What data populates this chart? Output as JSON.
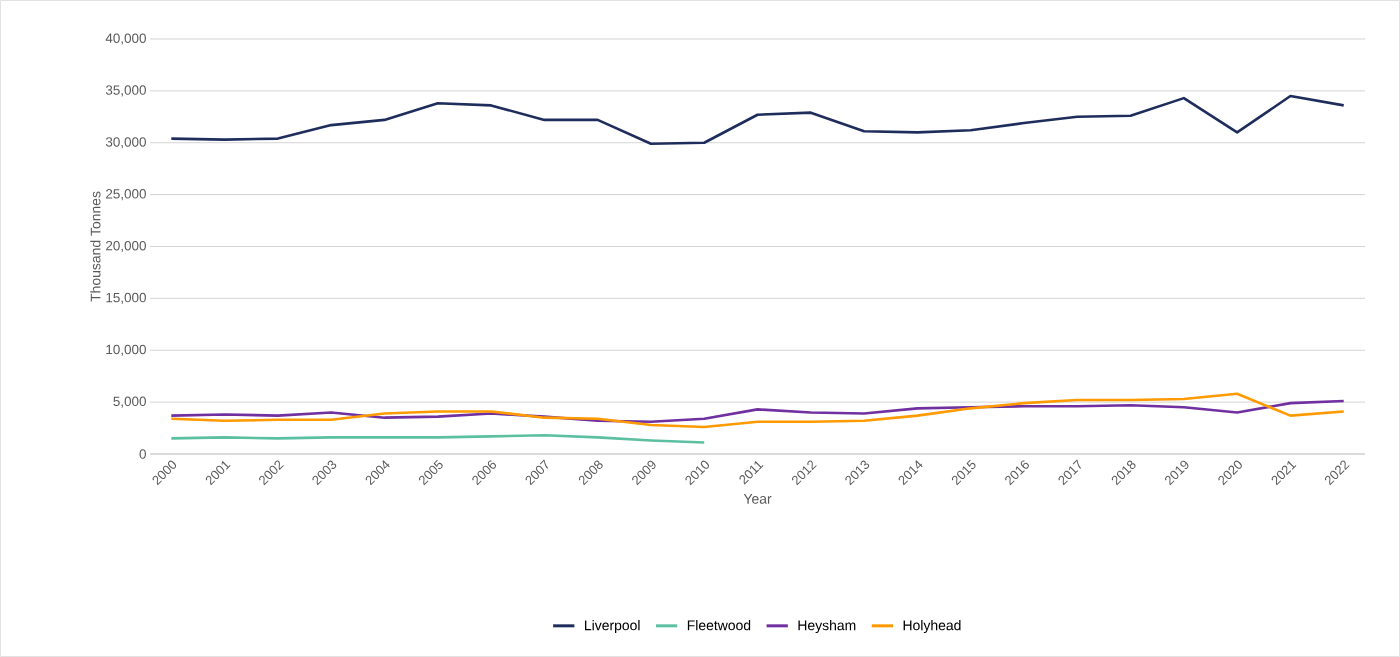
{
  "chart_data": {
    "type": "line",
    "xlabel": "Year",
    "ylabel": "Thousand Tonnes",
    "categories": [
      "2000",
      "2001",
      "2002",
      "2003",
      "2004",
      "2005",
      "2006",
      "2007",
      "2008",
      "2009",
      "2010",
      "2011",
      "2012",
      "2013",
      "2014",
      "2015",
      "2016",
      "2017",
      "2018",
      "2019",
      "2020",
      "2021",
      "2022"
    ],
    "series": [
      {
        "name": "Liverpool",
        "color": "#1f2d5c",
        "values": [
          30400,
          30300,
          30400,
          31700,
          32200,
          33800,
          33600,
          32200,
          32200,
          29900,
          30000,
          32700,
          32900,
          31100,
          31000,
          31200,
          31900,
          32500,
          32600,
          34300,
          31000,
          34500,
          33600
        ]
      },
      {
        "name": "Fleetwood",
        "color": "#5bbfa0",
        "values": [
          1500,
          1600,
          1500,
          1600,
          1600,
          1600,
          1700,
          1800,
          1600,
          1300,
          1100,
          null,
          null,
          null,
          null,
          null,
          null,
          null,
          null,
          null,
          null,
          null,
          null
        ]
      },
      {
        "name": "Heysham",
        "color": "#7030a0",
        "values": [
          3700,
          3800,
          3700,
          4000,
          3500,
          3600,
          3900,
          3600,
          3200,
          3100,
          3400,
          4300,
          4000,
          3900,
          4400,
          4500,
          4600,
          4600,
          4700,
          4500,
          4000,
          4900,
          5100
        ]
      },
      {
        "name": "Holyhead",
        "color": "#ff9a00",
        "values": [
          3400,
          3200,
          3300,
          3300,
          3900,
          4100,
          4100,
          3500,
          3400,
          2800,
          2600,
          3100,
          3100,
          3200,
          3700,
          4400,
          4900,
          5200,
          5200,
          5300,
          5800,
          3700,
          4100
        ]
      }
    ],
    "ylim": [
      0,
      40000
    ],
    "yticks": [
      {
        "value": 0,
        "label": "0"
      },
      {
        "value": 5000,
        "label": "5,000"
      },
      {
        "value": 10000,
        "label": "10,000"
      },
      {
        "value": 15000,
        "label": "15,000"
      },
      {
        "value": 20000,
        "label": "20,000"
      },
      {
        "value": 25000,
        "label": "25,000"
      },
      {
        "value": 30000,
        "label": "30,000"
      },
      {
        "value": 35000,
        "label": "35,000"
      },
      {
        "value": 40000,
        "label": "40,000"
      }
    ],
    "grid": "y",
    "legend": "bottom",
    "marker": "none",
    "line_style": "solid"
  }
}
